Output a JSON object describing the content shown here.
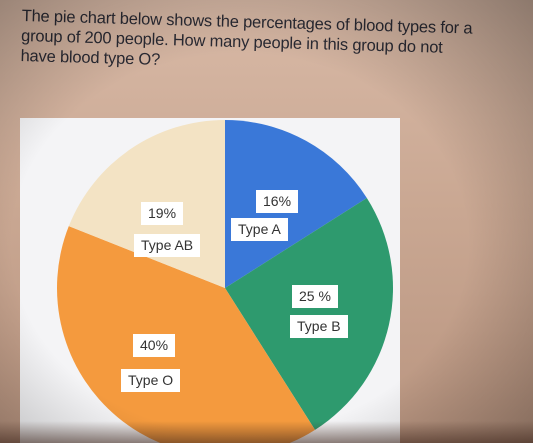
{
  "question": {
    "lines": [
      "The pie chart below shows the percentages of blood types for a",
      "group of 200 people. How many people in this group do not",
      "have blood type O?"
    ]
  },
  "chart_data": {
    "type": "pie",
    "slices": [
      {
        "name": "Type A",
        "value": 16,
        "value_label": "16%",
        "color": "#3a78d8"
      },
      {
        "name": "Type B",
        "value": 25,
        "value_label": "25 %",
        "color": "#2e9a6e"
      },
      {
        "name": "Type O",
        "value": 40,
        "value_label": "40%",
        "color": "#f49a3e"
      },
      {
        "name": "Type AB",
        "value": 19,
        "value_label": "19%",
        "color": "#f3e3c4"
      }
    ]
  }
}
